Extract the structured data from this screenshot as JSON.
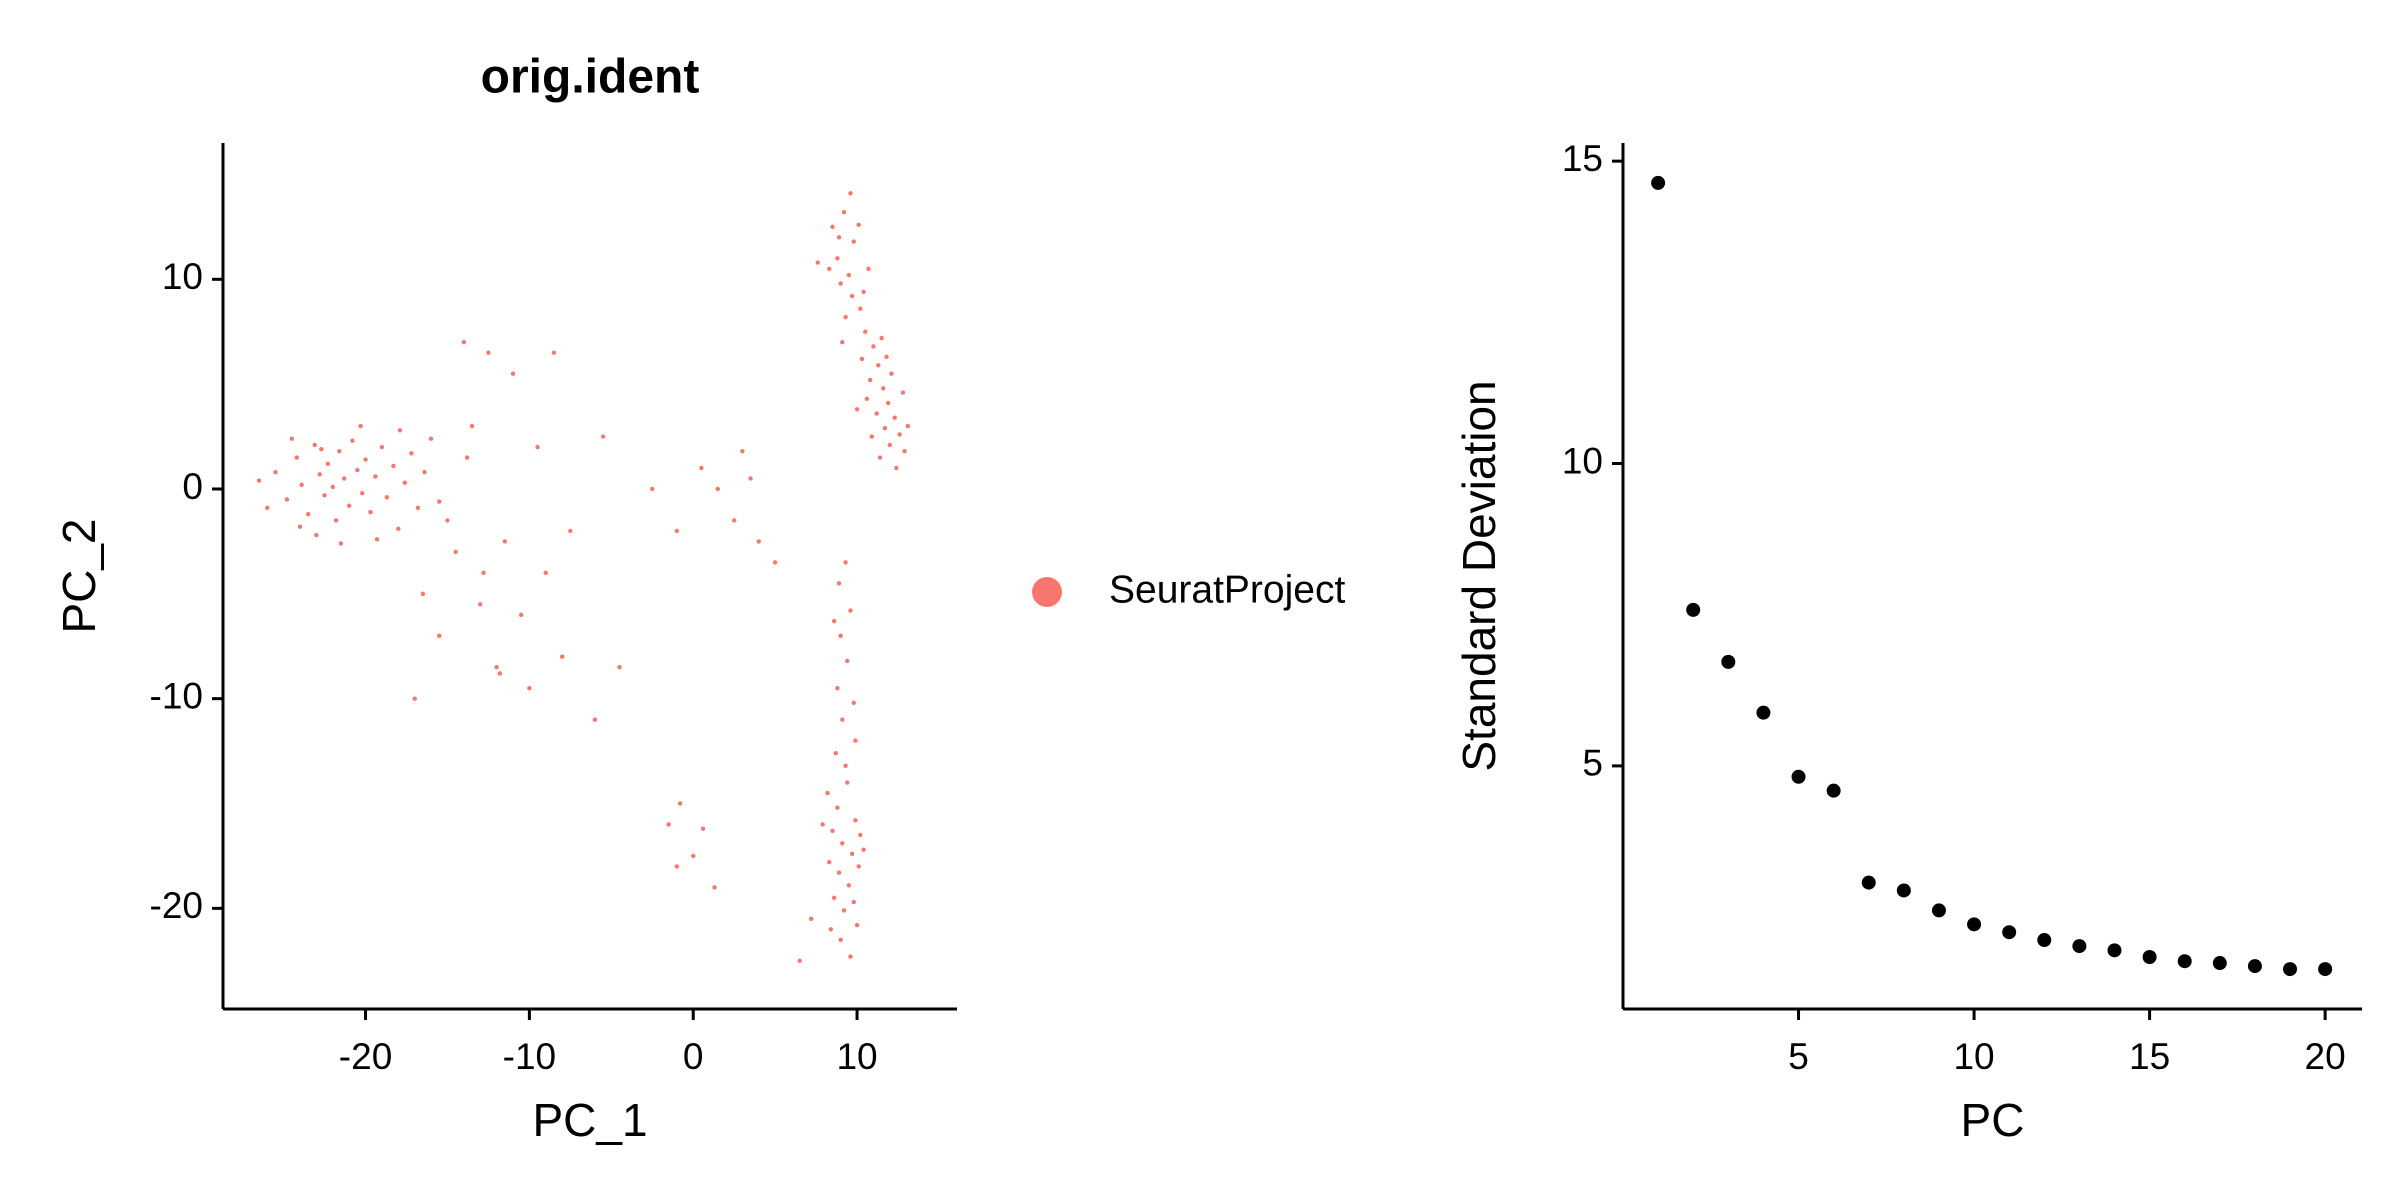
{
  "chart_data": [
    {
      "type": "scatter",
      "title": "orig.ident",
      "x_label": "PC_1",
      "y_label": "PC_2",
      "x": [
        -25.5,
        -24.8,
        -24.2,
        -23.9,
        -23.5,
        -23.1,
        -22.8,
        -22.5,
        -22.3,
        -22.0,
        -21.8,
        -21.6,
        -21.3,
        -21.0,
        -20.8,
        -20.5,
        -20.2,
        -20.0,
        -19.7,
        -19.4,
        -19.0,
        -18.7,
        -18.3,
        -18.0,
        -17.6,
        -17.2,
        -16.8,
        -16.4,
        -16.0,
        -15.5,
        -26.5,
        -26.0,
        -24.5,
        -23.0,
        -21.5,
        -20.3,
        -22.7,
        -24.0,
        -19.3,
        -17.9,
        8.5,
        9.2,
        9.8,
        8.8,
        9.5,
        10.1,
        8.3,
        9.0,
        9.7,
        10.2,
        10.5,
        11.0,
        10.3,
        11.3,
        10.8,
        11.6,
        10.6,
        11.9,
        11.2,
        12.3,
        11.7,
        12.6,
        12.0,
        12.9,
        11.4,
        12.4,
        13.1,
        10.0,
        12.8,
        11.5,
        9.3,
        10.7,
        8.9,
        9.6,
        7.6,
        12.1,
        10.9,
        11.8,
        10.4,
        9.1,
        8.2,
        8.8,
        9.4,
        9.9,
        8.5,
        9.1,
        9.7,
        10.2,
        8.3,
        8.9,
        9.5,
        10.1,
        8.6,
        9.2,
        9.8,
        10.4,
        7.9,
        9.0,
        9.6,
        8.4,
        10.0,
        9.3,
        8.7,
        9.9,
        9.1,
        8.8,
        9.4,
        9.0,
        9.6,
        8.9,
        9.3,
        8.6,
        9.8,
        7.2,
        6.5,
        -14.5,
        -13.0,
        -12.0,
        -10.5,
        -9.0,
        -11.5,
        -15.5,
        -8.0,
        -13.5,
        -11.0,
        -9.5,
        -12.5,
        -14.0,
        -10.0,
        -16.5,
        -7.5,
        -17.0,
        -6.0,
        -8.5,
        -5.5,
        -4.5,
        -13.8,
        -15.0,
        -11.8,
        -12.8,
        -2.5,
        -1.0,
        0.5,
        1.5,
        2.5,
        3.5,
        4.0,
        5.0,
        3.0,
        -1.5,
        -0.8,
        0.0,
        -1.0,
        0.6,
        1.3
      ],
      "series": [
        {
          "name": "SeuratProject",
          "color": "#F8766D",
          "values": [
            0.8,
            -0.5,
            1.5,
            0.2,
            -1.2,
            2.1,
            0.7,
            -0.3,
            1.2,
            0.1,
            -1.5,
            1.8,
            0.5,
            -0.8,
            2.3,
            0.9,
            -0.2,
            1.4,
            -1.1,
            0.6,
            2.0,
            -0.4,
            1.1,
            -1.9,
            0.3,
            1.7,
            -0.9,
            0.8,
            2.4,
            -0.6,
            0.4,
            -0.9,
            2.4,
            -2.2,
            -2.6,
            3.0,
            1.9,
            -1.8,
            -2.4,
            2.8,
            12.5,
            13.2,
            11.8,
            11.0,
            10.2,
            12.6,
            10.5,
            9.8,
            9.2,
            8.6,
            7.5,
            6.8,
            6.2,
            5.9,
            5.2,
            4.8,
            4.3,
            4.1,
            3.6,
            3.4,
            2.9,
            2.6,
            2.1,
            1.8,
            1.5,
            1.0,
            3.0,
            3.8,
            4.6,
            7.2,
            8.2,
            10.5,
            12.0,
            14.1,
            10.8,
            5.5,
            2.5,
            6.3,
            9.4,
            7.0,
            -14.5,
            -15.2,
            -14.0,
            -15.8,
            -16.3,
            -16.9,
            -17.4,
            -16.5,
            -17.8,
            -18.3,
            -18.9,
            -18.0,
            -19.5,
            -20.1,
            -19.7,
            -17.2,
            -16.0,
            -21.5,
            -22.3,
            -21.0,
            -20.8,
            -13.2,
            -12.6,
            -12.0,
            -11.0,
            -9.5,
            -8.2,
            -7.0,
            -5.8,
            -4.5,
            -3.5,
            -6.3,
            -10.2,
            -20.5,
            -22.5,
            -3.0,
            -5.5,
            -8.5,
            -6.0,
            -4.0,
            -2.5,
            -7.0,
            -8.0,
            3.0,
            5.5,
            2.0,
            6.5,
            7.0,
            -9.5,
            -5.0,
            -2.0,
            -10.0,
            -11.0,
            6.5,
            2.5,
            -8.5,
            1.5,
            -1.5,
            -8.8,
            -4.0,
            0.0,
            -2.0,
            1.0,
            0.0,
            -1.5,
            0.5,
            -2.5,
            -3.5,
            1.8,
            -16.0,
            -15.0,
            -17.5,
            -18.0,
            -16.2,
            -19.0
          ]
        }
      ],
      "xlim": [
        -28.7,
        16.1
      ],
      "xticks": [
        -20,
        -10,
        0,
        10
      ],
      "ylim": [
        -24.8,
        16.5
      ],
      "yticks": [
        -20,
        -10,
        0,
        10
      ],
      "legend": "right"
    },
    {
      "type": "scatter",
      "x_label": "PC",
      "y_label": "Standard Deviation",
      "x": [
        1,
        2,
        3,
        4,
        5,
        6,
        7,
        8,
        9,
        10,
        11,
        12,
        13,
        14,
        15,
        16,
        17,
        18,
        19,
        20
      ],
      "series": [
        {
          "color": "#000000",
          "values": [
            14.64,
            7.58,
            6.72,
            5.88,
            4.82,
            4.59,
            3.07,
            2.94,
            2.61,
            2.38,
            2.25,
            2.12,
            2.02,
            1.95,
            1.84,
            1.77,
            1.74,
            1.69,
            1.64,
            1.64
          ]
        }
      ],
      "xlim": [
        0.0,
        21.05
      ],
      "xticks": [
        5,
        10,
        15,
        20
      ],
      "ylim": [
        0.98,
        15.3
      ],
      "yticks": [
        5,
        10,
        15
      ]
    }
  ]
}
